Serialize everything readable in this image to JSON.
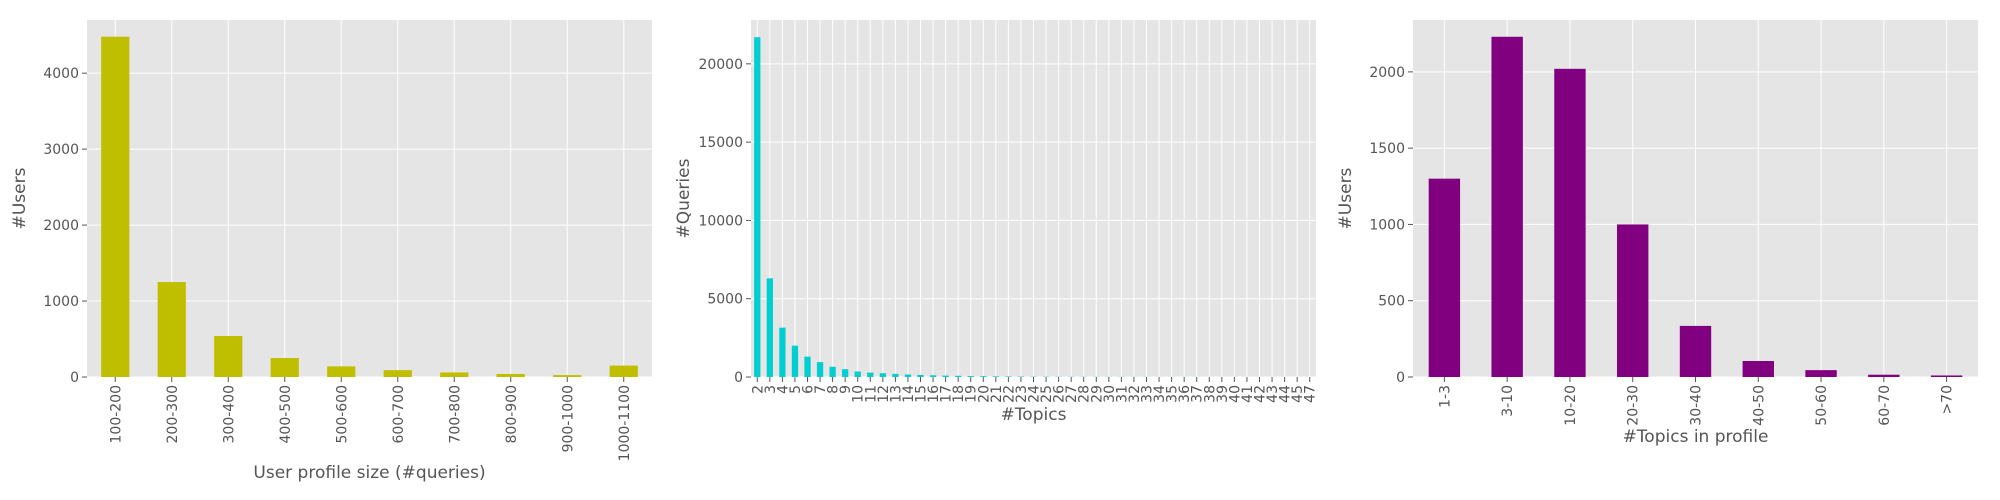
{
  "chart_data": [
    {
      "type": "bar",
      "xlabel": "User profile size (#queries)",
      "ylabel": "#Users",
      "categories": [
        "100-200",
        "200-300",
        "300-400",
        "400-500",
        "500-600",
        "600-700",
        "700-800",
        "800-900",
        "900-1000",
        "1000-1100"
      ],
      "values": [
        4480,
        1250,
        540,
        250,
        140,
        90,
        60,
        40,
        25,
        150
      ],
      "ylim": [
        0,
        4700
      ],
      "yticks": [
        0,
        1000,
        2000,
        3000,
        4000
      ],
      "color": "#bfbf00",
      "grid": true
    },
    {
      "type": "bar",
      "xlabel": "#Topics",
      "ylabel": "#Queries",
      "categories": [
        "2",
        "3",
        "4",
        "5",
        "6",
        "7",
        "8",
        "9",
        "10",
        "11",
        "12",
        "13",
        "14",
        "15",
        "16",
        "17",
        "18",
        "19",
        "20",
        "21",
        "22",
        "23",
        "24",
        "25",
        "26",
        "27",
        "28",
        "29",
        "30",
        "31",
        "32",
        "33",
        "34",
        "35",
        "36",
        "37",
        "38",
        "39",
        "40",
        "41",
        "42",
        "43",
        "44",
        "45",
        "47"
      ],
      "values": [
        21700,
        6300,
        3150,
        2000,
        1300,
        950,
        650,
        500,
        350,
        280,
        240,
        200,
        160,
        130,
        110,
        90,
        75,
        60,
        50,
        40,
        30,
        25,
        20,
        18,
        15,
        13,
        11,
        10,
        9,
        8,
        7,
        6,
        5,
        5,
        4,
        4,
        3,
        3,
        3,
        2,
        2,
        2,
        2,
        1,
        1
      ],
      "ylim": [
        0,
        22800
      ],
      "yticks": [
        0,
        5000,
        10000,
        15000,
        20000
      ],
      "color": "#00ced1",
      "grid": true
    },
    {
      "type": "bar",
      "xlabel": "#Topics in profile",
      "ylabel": "#Users",
      "categories": [
        "1-3",
        "3-10",
        "10-20",
        "20-30",
        "30-40",
        "40-50",
        "50-60",
        "60-70",
        ">70"
      ],
      "values": [
        1300,
        2230,
        2020,
        1000,
        335,
        105,
        45,
        15,
        10
      ],
      "ylim": [
        0,
        2340
      ],
      "yticks": [
        0,
        500,
        1000,
        1500,
        2000
      ],
      "color": "#800080",
      "grid": true
    }
  ]
}
